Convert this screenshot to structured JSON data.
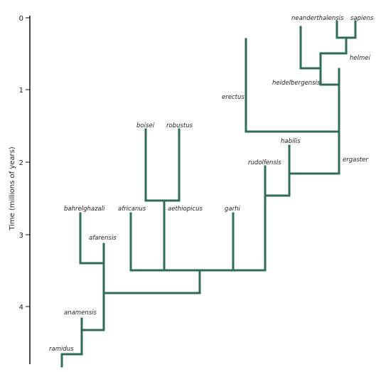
{
  "axis": {
    "label": "Time (millions of years)",
    "ticks": [
      0,
      1,
      2,
      3,
      4
    ]
  },
  "species": [
    "ramidus",
    "anamensis",
    "bahrelghazali",
    "afarensis",
    "africanus",
    "aethiopicus",
    "boisei",
    "robustus",
    "garhi",
    "rudolfensis",
    "habilis",
    "ergaster",
    "erectus",
    "heidelbergensis",
    "neanderthalensis",
    "sapiens",
    "helmei"
  ]
}
